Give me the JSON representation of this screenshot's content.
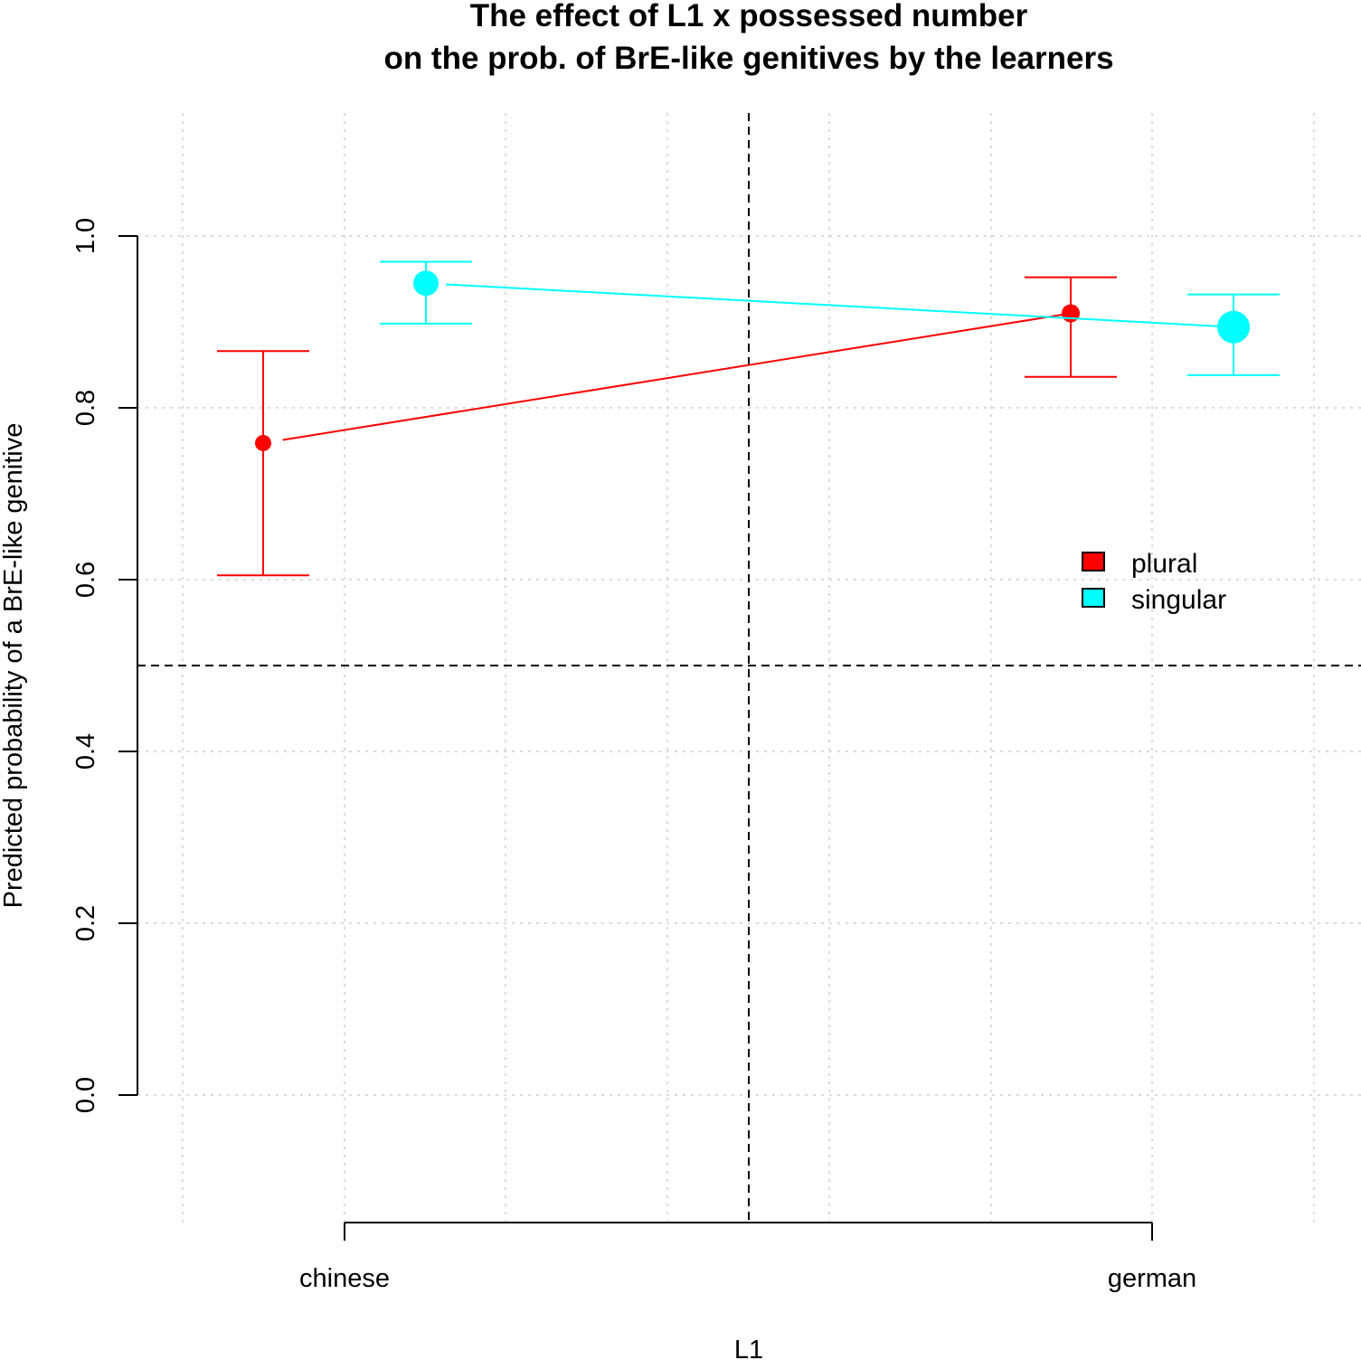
{
  "chart_data": {
    "type": "line",
    "title": [
      "The effect of L1 x possessed number",
      "on the prob. of BrE-like genitives by the learners"
    ],
    "xlabel": "L1",
    "ylabel": "Predicted probability of a BrE-like genitive",
    "categories": [
      "chinese",
      "german"
    ],
    "ylim": [
      0,
      1
    ],
    "yticks": [
      "0.0",
      "0.2",
      "0.4",
      "0.6",
      "0.8",
      "1.0"
    ],
    "yticks_values": [
      0,
      0.2,
      0.4,
      0.6,
      0.8,
      1.0
    ],
    "grid": true,
    "reference_lines": {
      "horizontal": 0.5,
      "vertical": "between categories"
    },
    "legend_position": "right",
    "series": [
      {
        "name": "plural",
        "color": "#ff0000",
        "values": [
          0.759,
          0.91
        ],
        "lower": [
          0.605,
          0.836
        ],
        "upper": [
          0.866,
          0.952
        ]
      },
      {
        "name": "singular",
        "color": "#00ffff",
        "values": [
          0.945,
          0.894
        ],
        "lower": [
          0.898,
          0.838
        ],
        "upper": [
          0.97,
          0.932
        ]
      }
    ]
  }
}
